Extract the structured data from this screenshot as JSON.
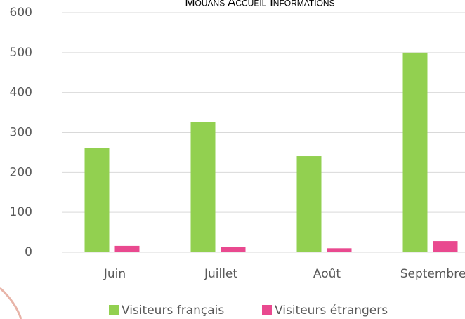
{
  "chart_data": {
    "type": "bar",
    "title": "Mouans Accueil Informations",
    "categories": [
      "Juin",
      "Juillet",
      "Août",
      "Septembre"
    ],
    "series": [
      {
        "name": "Visiteurs français",
        "color": "#92d050",
        "values": [
          262,
          327,
          241,
          500
        ]
      },
      {
        "name": "Visiteurs étrangers",
        "color": "#e9498f",
        "values": [
          16,
          14,
          10,
          28
        ]
      }
    ],
    "ylim": [
      0,
      600
    ],
    "yticks": [
      0,
      100,
      200,
      300,
      400,
      500,
      600
    ],
    "grid": true,
    "legend": "bottom"
  }
}
